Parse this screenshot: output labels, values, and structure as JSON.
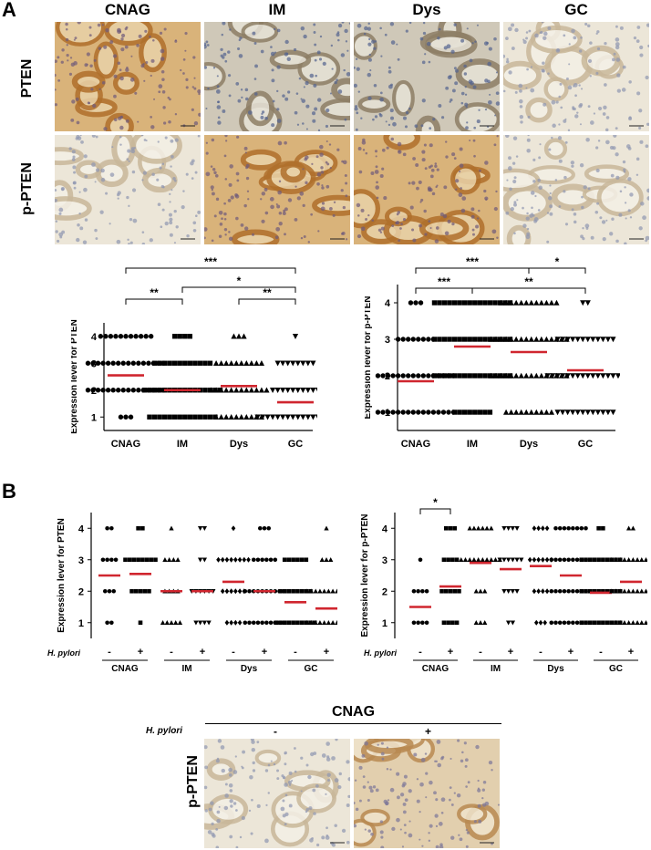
{
  "panels": {
    "a": "A",
    "b": "B"
  },
  "columns": [
    "CNAG",
    "IM",
    "Dys",
    "GC"
  ],
  "rows": [
    "PTEN",
    "p-PTEN"
  ],
  "colors": {
    "mean_line": "#d0262f",
    "stain_brown": "#c8893d",
    "stain_blue": "#8a9ab8"
  },
  "hp_label": "H. pylori",
  "hp_signs": {
    "neg": "-",
    "pos": "+"
  },
  "cnag_header": "CNAG",
  "bottom_row_label": "p-PTEN",
  "chart_data": [
    {
      "type": "scatter",
      "id": "A-left",
      "ylabel": "Expression lever for PTEN",
      "categories": [
        "CNAG",
        "IM",
        "Dys",
        "GC"
      ],
      "ylim": [
        0.5,
        4.5
      ],
      "ticks": [
        1,
        2,
        3,
        4
      ],
      "markers": [
        "circle",
        "square",
        "triangle",
        "triangle-down"
      ],
      "means": [
        2.55,
        2.0,
        2.15,
        1.55
      ],
      "counts": [
        {
          "1": 3,
          "2": 16,
          "3": 16,
          "4": 11
        },
        {
          "1": 14,
          "2": 16,
          "3": 12,
          "4": 4
        },
        {
          "1": 10,
          "2": 12,
          "3": 10,
          "4": 3
        },
        {
          "1": 16,
          "2": 10,
          "3": 8,
          "4": 1
        }
      ],
      "significance": [
        {
          "pair": [
            0,
            1
          ],
          "label": "**"
        },
        {
          "pair": [
            0,
            3
          ],
          "label": "***"
        },
        {
          "pair": [
            1,
            3
          ],
          "label": "*"
        },
        {
          "pair": [
            2,
            3
          ],
          "label": "**"
        }
      ]
    },
    {
      "type": "scatter",
      "id": "A-right",
      "ylabel": "Expression lever for p-PTEN",
      "categories": [
        "CNAG",
        "IM",
        "Dys",
        "GC"
      ],
      "ylim": [
        0.5,
        4.5
      ],
      "ticks": [
        1,
        2,
        3,
        4
      ],
      "markers": [
        "circle",
        "square",
        "triangle",
        "triangle-down"
      ],
      "means": [
        1.85,
        2.8,
        2.65,
        2.15
      ],
      "counts": [
        {
          "1": 16,
          "2": 16,
          "3": 8,
          "4": 3
        },
        {
          "1": 8,
          "2": 16,
          "3": 16,
          "4": 16
        },
        {
          "1": 10,
          "2": 16,
          "3": 16,
          "4": 12
        },
        {
          "1": 12,
          "2": 16,
          "3": 12,
          "4": 2
        }
      ],
      "significance": [
        {
          "pair": [
            0,
            1
          ],
          "label": "***"
        },
        {
          "pair": [
            0,
            2
          ],
          "label": "***"
        },
        {
          "pair": [
            1,
            3
          ],
          "label": "**"
        },
        {
          "pair": [
            2,
            3
          ],
          "label": "*"
        }
      ]
    },
    {
      "type": "scatter",
      "id": "B-left",
      "ylabel": "Expression lever for PTEN",
      "categories": [
        "CNAG",
        "IM",
        "Dys",
        "GC"
      ],
      "subgroups": [
        "-",
        "+"
      ],
      "ylim": [
        0.5,
        4.5
      ],
      "ticks": [
        1,
        2,
        3,
        4
      ],
      "markers": [
        "circle",
        "square",
        "triangle",
        "triangle-down",
        "diamond",
        "circle",
        "square",
        "triangle"
      ],
      "means": [
        2.5,
        2.55,
        2.0,
        2.0,
        2.3,
        2.0,
        1.65,
        1.45
      ],
      "counts": [
        {
          "1": 2,
          "2": 3,
          "3": 4,
          "4": 2
        },
        {
          "1": 1,
          "2": 5,
          "3": 8,
          "4": 2
        },
        {
          "1": 5,
          "2": 4,
          "3": 4,
          "4": 1
        },
        {
          "1": 4,
          "2": 6,
          "3": 2,
          "4": 2
        },
        {
          "1": 4,
          "2": 6,
          "3": 8,
          "4": 1
        },
        {
          "1": 10,
          "2": 10,
          "3": 6,
          "4": 3
        },
        {
          "1": 10,
          "2": 8,
          "3": 6,
          "4": 0
        },
        {
          "1": 10,
          "2": 10,
          "3": 3,
          "4": 1
        }
      ],
      "significance": []
    },
    {
      "type": "scatter",
      "id": "B-right",
      "ylabel": "Expression lever for p-PTEN",
      "categories": [
        "CNAG",
        "IM",
        "Dys",
        "GC"
      ],
      "subgroups": [
        "-",
        "+"
      ],
      "ylim": [
        0.5,
        4.5
      ],
      "ticks": [
        1,
        2,
        3,
        4
      ],
      "markers": [
        "circle",
        "square",
        "triangle",
        "triangle-down",
        "diamond",
        "circle",
        "square",
        "triangle"
      ],
      "means": [
        1.5,
        2.15,
        2.9,
        2.7,
        2.8,
        2.5,
        1.95,
        2.3
      ],
      "counts": [
        {
          "1": 4,
          "2": 4,
          "3": 1,
          "4": 0
        },
        {
          "1": 4,
          "2": 5,
          "3": 4,
          "4": 3
        },
        {
          "1": 3,
          "2": 3,
          "3": 10,
          "4": 6
        },
        {
          "1": 2,
          "2": 4,
          "3": 6,
          "4": 4
        },
        {
          "1": 3,
          "2": 4,
          "3": 6,
          "4": 4
        },
        {
          "1": 10,
          "2": 10,
          "3": 10,
          "4": 8
        },
        {
          "1": 10,
          "2": 10,
          "3": 10,
          "4": 2
        },
        {
          "1": 8,
          "2": 10,
          "3": 10,
          "4": 2
        }
      ],
      "significance": [
        {
          "pair": [
            0,
            1
          ],
          "label": "*"
        }
      ]
    }
  ]
}
